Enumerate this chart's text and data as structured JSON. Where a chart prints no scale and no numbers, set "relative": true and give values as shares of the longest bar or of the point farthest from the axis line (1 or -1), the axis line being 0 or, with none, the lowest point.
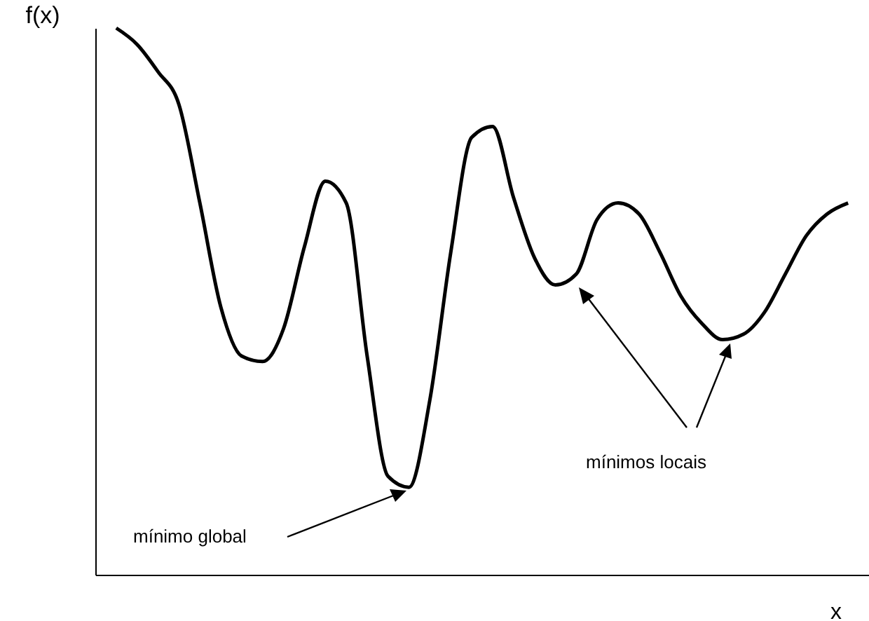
{
  "chart_data": {
    "type": "line",
    "relative": true,
    "xlabel": "x",
    "ylabel": "f(x)",
    "color": "#000000",
    "marker": "none",
    "categories": [
      null,
      null,
      null,
      null,
      null,
      null,
      null,
      null,
      null,
      null,
      null,
      null,
      null,
      null,
      null,
      null,
      null,
      null,
      null,
      null,
      null,
      null,
      null,
      null,
      null,
      null,
      null,
      null,
      null,
      null,
      null,
      null,
      null,
      null,
      null,
      null
    ],
    "values": [
      1.0,
      0.97,
      0.92,
      0.86,
      0.68,
      0.49,
      0.4,
      0.39,
      0.45,
      0.6,
      0.72,
      0.68,
      0.4,
      0.18,
      0.16,
      0.32,
      0.59,
      0.8,
      0.82,
      0.69,
      0.58,
      0.53,
      0.55,
      0.65,
      0.68,
      0.66,
      0.59,
      0.51,
      0.46,
      0.43,
      0.44,
      0.48,
      0.55,
      0.62,
      0.66,
      0.68
    ],
    "annotations": [
      "mínimo global",
      "mínimos locais"
    ]
  }
}
